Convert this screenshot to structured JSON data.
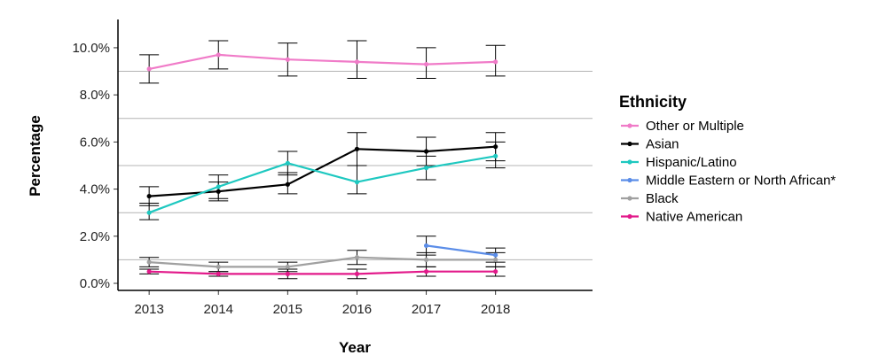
{
  "chart_data": {
    "type": "line",
    "title": "",
    "xlabel": "Year",
    "ylabel": "Percentage",
    "x": [
      2013,
      2014,
      2015,
      2016,
      2017,
      2018
    ],
    "xticks": [
      "2013",
      "2014",
      "2015",
      "2016",
      "2017",
      "2018"
    ],
    "xlim": [
      2012.55,
      2019.4
    ],
    "ylim": [
      -0.3,
      11.2
    ],
    "yticks": [
      0,
      2,
      4,
      6,
      8,
      10
    ],
    "ytick_labels": [
      "0.0%",
      "2.0%",
      "4.0%",
      "6.0%",
      "8.0%",
      "10.0%"
    ],
    "gridlines_y": [
      1,
      3,
      5,
      7,
      9
    ],
    "grid": "horizontal minor only",
    "error_bars": true,
    "legend": {
      "title": "Ethnicity",
      "position": "right"
    },
    "series": [
      {
        "name": "Other or Multiple",
        "color": "#F07BC8",
        "values": [
          9.1,
          9.7,
          9.5,
          9.4,
          9.3,
          9.4
        ],
        "lower": [
          8.5,
          9.1,
          8.8,
          8.7,
          8.7,
          8.8
        ],
        "upper": [
          9.7,
          10.3,
          10.2,
          10.3,
          10.0,
          10.1
        ]
      },
      {
        "name": "Asian",
        "color": "#000000",
        "values": [
          3.7,
          3.9,
          4.2,
          5.7,
          5.6,
          5.8
        ],
        "lower": [
          3.3,
          3.5,
          3.8,
          5.0,
          5.0,
          5.2
        ],
        "upper": [
          4.1,
          4.3,
          4.7,
          6.4,
          6.2,
          6.4
        ]
      },
      {
        "name": "Hispanic/Latino",
        "color": "#1EC8C0",
        "values": [
          3.0,
          4.1,
          5.1,
          4.3,
          4.9,
          5.4
        ],
        "lower": [
          2.7,
          3.6,
          4.6,
          3.8,
          4.4,
          4.9
        ],
        "upper": [
          3.4,
          4.6,
          5.6,
          5.0,
          5.4,
          6.0
        ]
      },
      {
        "name": "Middle Eastern or North African*",
        "color": "#5B8DE8",
        "values": [
          null,
          null,
          null,
          null,
          1.6,
          1.2
        ],
        "lower": [
          null,
          null,
          null,
          null,
          1.2,
          0.9
        ],
        "upper": [
          null,
          null,
          null,
          null,
          2.0,
          1.5
        ]
      },
      {
        "name": "Black",
        "color": "#A0A0A0",
        "values": [
          0.9,
          0.7,
          0.7,
          1.1,
          1.0,
          1.0
        ],
        "lower": [
          0.7,
          0.5,
          0.5,
          0.8,
          0.7,
          0.7
        ],
        "upper": [
          1.1,
          0.9,
          0.9,
          1.4,
          1.3,
          1.3
        ]
      },
      {
        "name": "Native American",
        "color": "#E2198A",
        "values": [
          0.5,
          0.4,
          0.4,
          0.4,
          0.5,
          0.5
        ],
        "lower": [
          0.4,
          0.3,
          0.2,
          0.2,
          0.3,
          0.3
        ],
        "upper": [
          0.6,
          0.5,
          0.6,
          0.6,
          0.7,
          0.7
        ]
      }
    ]
  }
}
